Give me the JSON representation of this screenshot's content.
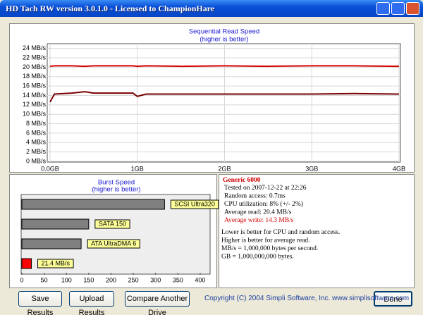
{
  "window": {
    "title": "HD Tach RW version 3.0.1.0 - Licensed to ChampionHare"
  },
  "chart_data": [
    {
      "type": "line",
      "title": "Sequential Read Speed",
      "subtitle": "(higher is better)",
      "x": [
        0,
        0.05,
        0.25,
        0.4,
        0.5,
        0.75,
        0.95,
        1.0,
        1.1,
        1.5,
        2,
        2.5,
        3,
        3.5,
        4
      ],
      "series": [
        {
          "color": "#d40000",
          "values": [
            20.2,
            20.3,
            20.3,
            20.2,
            20.3,
            20.3,
            20.3,
            20.2,
            20.3,
            20.2,
            20.3,
            20.2,
            20.3,
            20.3,
            20.2
          ]
        },
        {
          "color": "#7a0000",
          "values": [
            12.6,
            14.3,
            14.5,
            14.8,
            14.5,
            14.5,
            14.5,
            13.8,
            14.3,
            14.3,
            14.3,
            14.3,
            14.3,
            14.4,
            14.3
          ]
        }
      ],
      "xlim": [
        0,
        4
      ],
      "xticks": [
        {
          "value": 0,
          "label": "0.0GB"
        },
        {
          "value": 1,
          "label": "1GB"
        },
        {
          "value": 2,
          "label": "2GB"
        },
        {
          "value": 3,
          "label": "3GB"
        },
        {
          "value": 4,
          "label": "4GB"
        }
      ],
      "ylim": [
        0,
        25
      ],
      "yticks": [
        {
          "value": 0,
          "label": "0 MB/s"
        },
        {
          "value": 2,
          "label": "2 MB/s"
        },
        {
          "value": 4,
          "label": "4 MB/s"
        },
        {
          "value": 6,
          "label": "6 MB/s"
        },
        {
          "value": 8,
          "label": "8 MB/s"
        },
        {
          "value": 10,
          "label": "10 MB/s"
        },
        {
          "value": 12,
          "label": "12 MB/s"
        },
        {
          "value": 14,
          "label": "14 MB/s"
        },
        {
          "value": 16,
          "label": "16 MB/s"
        },
        {
          "value": 18,
          "label": "18 MB/s"
        },
        {
          "value": 20,
          "label": "20 MB/s"
        },
        {
          "value": 22,
          "label": "22 MB/s"
        },
        {
          "value": 24,
          "label": "24 MB/s"
        }
      ],
      "grid": true
    },
    {
      "type": "hbar",
      "title": "Burst Speed",
      "subtitle": "(higher is better)",
      "categories": [
        "SCSI Ultra320",
        "SATA 150",
        "ATA UltraDMA 6",
        null
      ],
      "values": [
        320,
        150,
        133,
        21.4
      ],
      "value_labels": [
        null,
        null,
        null,
        "21.4 MB/s"
      ],
      "colors": [
        "#808080",
        "#808080",
        "#808080",
        "#ff0000"
      ],
      "xlim": [
        0,
        420
      ],
      "xticks": [
        0,
        50,
        100,
        150,
        200,
        250,
        300,
        350,
        400
      ],
      "grid": false
    }
  ],
  "info": {
    "name": "Generic 6000",
    "lines": [
      "Tested on 2007-12-22 at 22:26",
      "Random access: 0.7ms",
      "CPU utilization: 8% (+/- 2%)",
      "Average read: 20.4 MB/s",
      "Average write: 14.3 MB/s"
    ],
    "notes": [
      "Lower is better for CPU and random access.",
      "Higher is better for average read.",
      "MB/s = 1,000,000 bytes per second.",
      "GB = 1,000,000,000 bytes."
    ]
  },
  "buttons": [
    "Save Results",
    "Upload Results",
    "Compare Another Drive",
    "Done"
  ],
  "copyright": "Copyright (C) 2004 Simpli Software, Inc. www.simplisoftware.com"
}
